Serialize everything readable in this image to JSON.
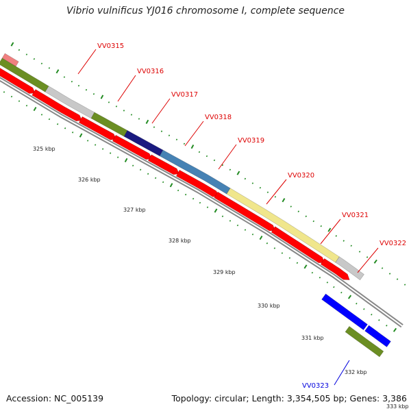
{
  "title": "Vibrio vulnificus YJ016 chromosome I, complete sequence",
  "footer": {
    "accession": "Accession: NC_005139",
    "summary": "Topology: circular; Length: 3,354,505 bp; Genes: 3,386"
  },
  "ticks": [
    "325 kbp",
    "326 kbp",
    "327 kbp",
    "328 kbp",
    "329 kbp",
    "330 kbp",
    "331 kbp",
    "332 kbp",
    "333 kbp"
  ],
  "gene_labels": [
    {
      "text": "VV0315",
      "color": "#dd0000"
    },
    {
      "text": "VV0316",
      "color": "#dd0000"
    },
    {
      "text": "VV0317",
      "color": "#dd0000"
    },
    {
      "text": "VV0318",
      "color": "#dd0000"
    },
    {
      "text": "VV0319",
      "color": "#dd0000"
    },
    {
      "text": "VV0320",
      "color": "#dd0000"
    },
    {
      "text": "VV0321",
      "color": "#dd0000"
    },
    {
      "text": "VV0322",
      "color": "#dd0000"
    },
    {
      "text": "VV0323",
      "color": "#0000dd"
    }
  ],
  "colors": {
    "cds_forward": "#ff0000",
    "cds_reverse": "#0000ff",
    "backbone": "#888888",
    "tick_mark": "#228b22"
  }
}
